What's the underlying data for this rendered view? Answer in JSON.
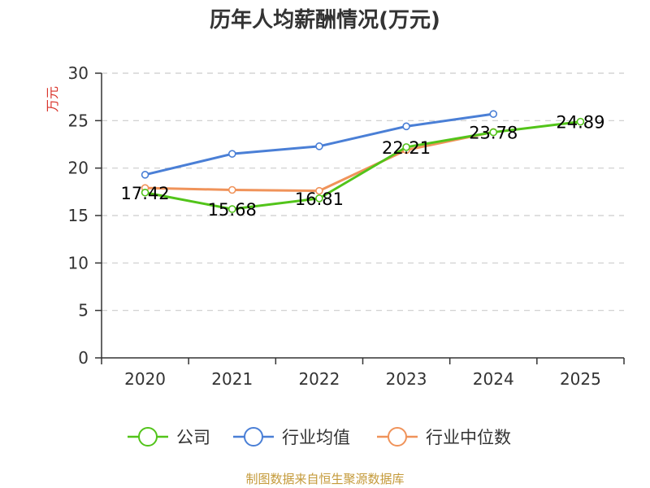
{
  "chart_data": {
    "type": "line",
    "title": "历年人均薪酬情况(万元)",
    "ylabel": "万元",
    "xlabel": "",
    "categories": [
      "2020",
      "2021",
      "2022",
      "2023",
      "2024",
      "2025"
    ],
    "ylim": [
      0,
      30
    ],
    "yticks": [
      0,
      5,
      10,
      15,
      20,
      25,
      30
    ],
    "grid": true,
    "legend_position": "bottom",
    "series": [
      {
        "name": "公司",
        "color": "#52c41a",
        "values": [
          17.42,
          15.68,
          16.81,
          22.21,
          23.78,
          24.89
        ],
        "labels": [
          "17.42",
          "15.68",
          "16.81",
          "22.21",
          "23.78",
          "24.89"
        ]
      },
      {
        "name": "行业均值",
        "color": "#4a7fd6",
        "values": [
          19.3,
          21.5,
          22.3,
          24.4,
          25.7,
          null
        ]
      },
      {
        "name": "行业中位数",
        "color": "#f0935a",
        "values": [
          17.9,
          17.7,
          17.6,
          21.9,
          23.8,
          null
        ]
      }
    ],
    "ylabel_color": "#d9342b"
  },
  "source": "制图数据来自恒生聚源数据库"
}
